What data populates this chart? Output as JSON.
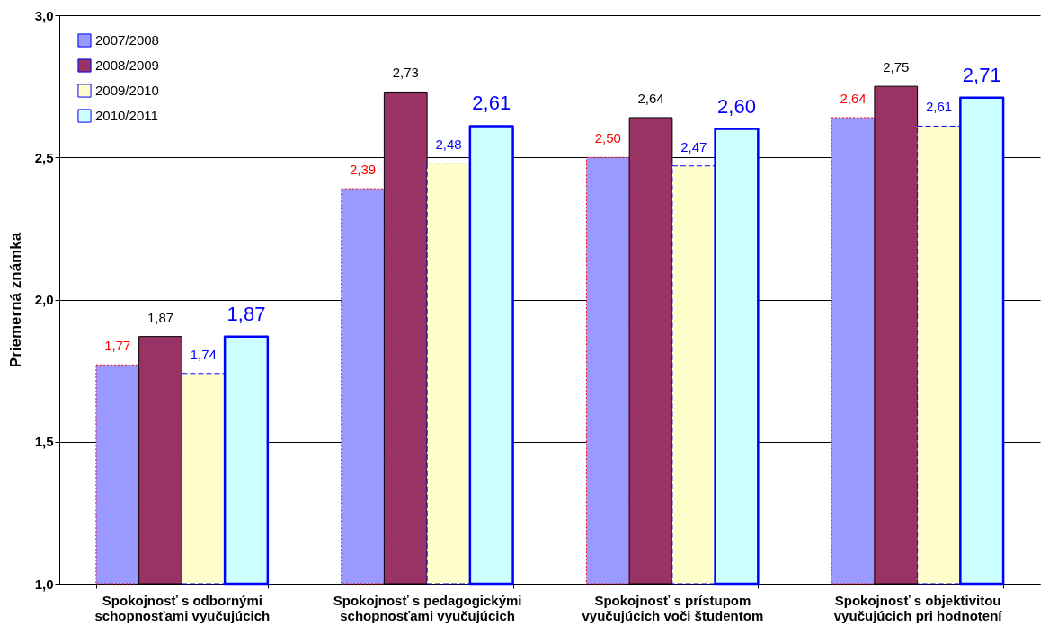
{
  "chart_data": {
    "type": "bar",
    "ylabel": "Priemerná známka",
    "categories": [
      "Spokojnosť s odbornými schopnosťami vyučujúcich",
      "Spokojnosť s pedagogickými schopnosťami vyučujúcich",
      "Spokojnosť s prístupom vyučujúcich voči študentom",
      "Spokojnosť s objektivitou vyučujúcich pri hodnotení"
    ],
    "series": [
      {
        "name": "2007/2008",
        "color": "#9999ff",
        "values": [
          1.77,
          2.39,
          2.5,
          2.64
        ],
        "value_labels": [
          "1,77",
          "2,39",
          "2,50",
          "2,64"
        ]
      },
      {
        "name": "2008/2009",
        "color": "#993366",
        "values": [
          1.87,
          2.73,
          2.64,
          2.75
        ],
        "value_labels": [
          "1,87",
          "2,73",
          "2,64",
          "2,75"
        ]
      },
      {
        "name": "2009/2010",
        "color": "#ffffcc",
        "values": [
          1.74,
          2.48,
          2.47,
          2.61
        ],
        "value_labels": [
          "1,74",
          "2,48",
          "2,47",
          "2,61"
        ]
      },
      {
        "name": "2010/2011",
        "color": "#ccffff",
        "values": [
          1.87,
          2.61,
          2.6,
          2.71
        ],
        "value_labels": [
          "1,87",
          "2,61",
          "2,60",
          "2,71"
        ]
      }
    ],
    "ylim": [
      1,
      3
    ],
    "yticks": [
      {
        "value": 1,
        "label": "1,0"
      },
      {
        "value": 1.5,
        "label": "1,5"
      },
      {
        "value": 2,
        "label": "2,0"
      },
      {
        "value": 2.5,
        "label": "2,5"
      },
      {
        "value": 3,
        "label": "3,0"
      }
    ],
    "grid": "y",
    "legend": "top left"
  }
}
